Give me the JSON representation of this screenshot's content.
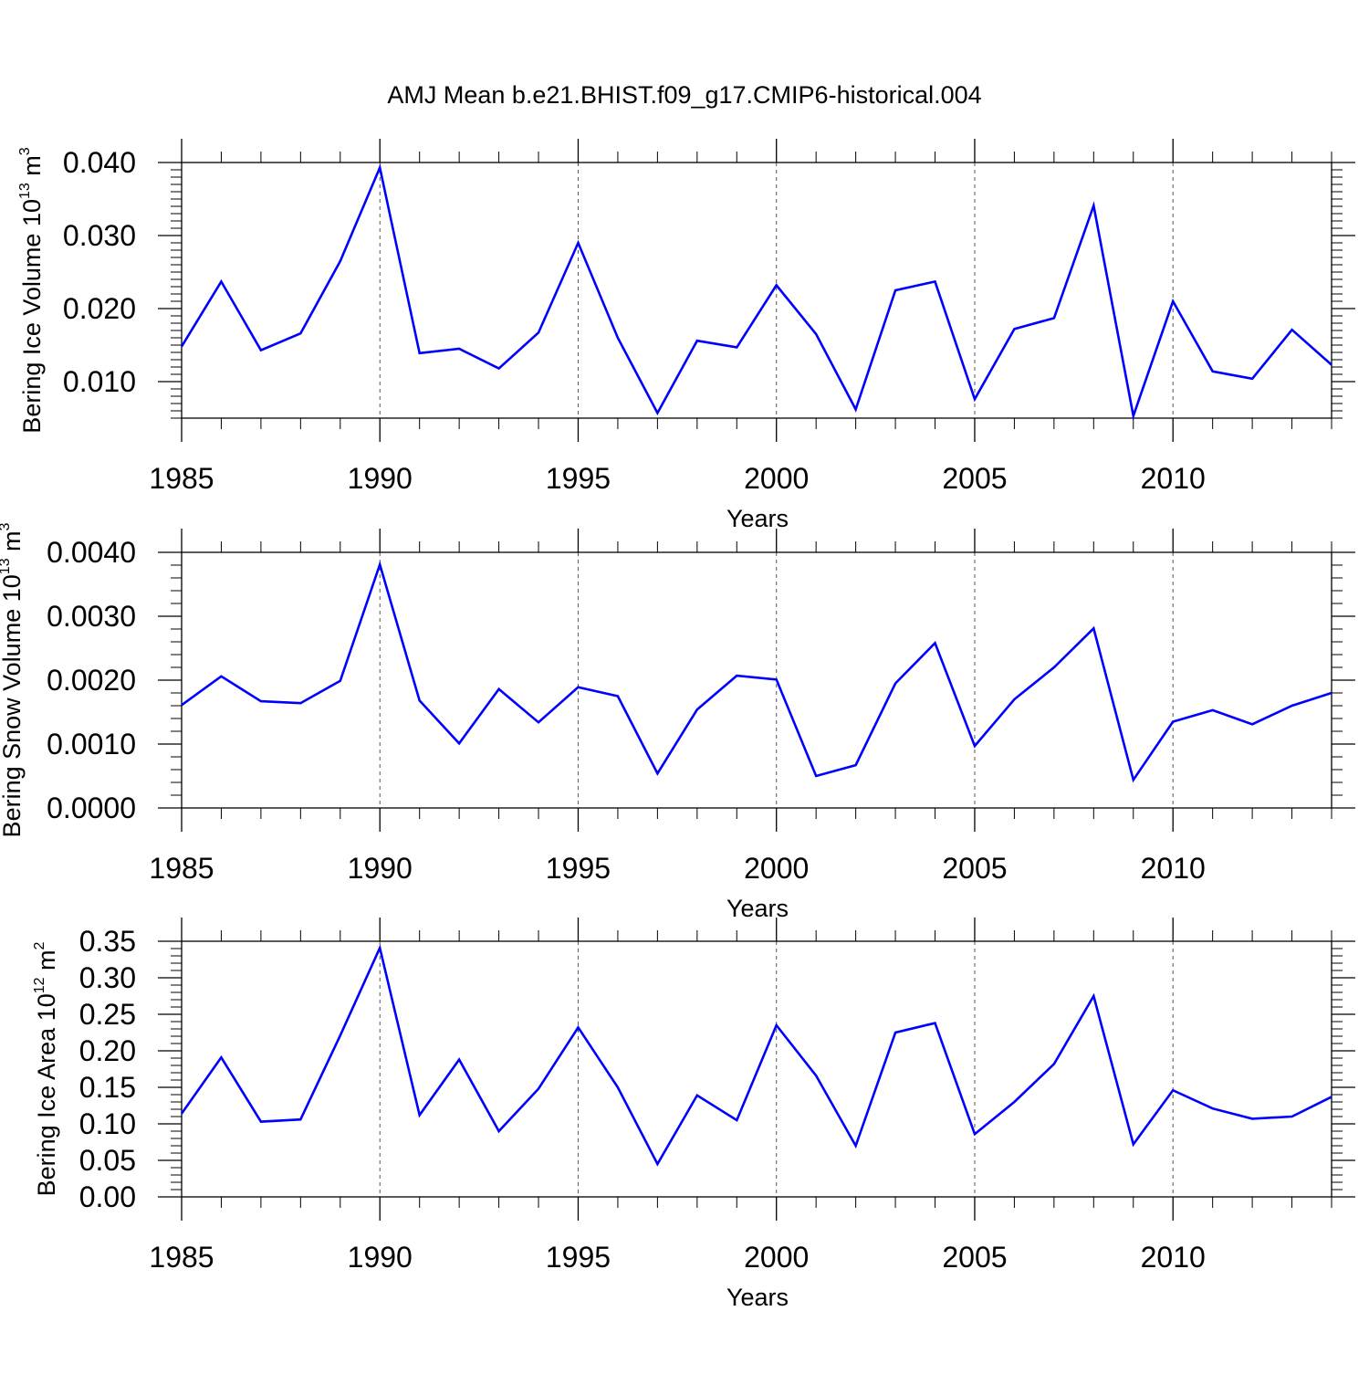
{
  "title": "AMJ Mean b.e21.BHIST.f09_g17.CMIP6-historical.004",
  "colors": {
    "line": "#0000ff",
    "axis": "#000000",
    "grid": "#555555"
  },
  "chart_data": [
    {
      "type": "line",
      "xlabel": "Years",
      "ylabel": {
        "prefix": "Bering Ice Volume 10",
        "exp": "13",
        "mid": " m",
        "unit_exp": "3"
      },
      "xlim": [
        1985,
        2014
      ],
      "ylim": [
        0.005,
        0.04
      ],
      "x_ticks": [
        "1985",
        "1990",
        "1995",
        "2000",
        "2005",
        "2010"
      ],
      "y_ticks": [
        "0.010",
        "0.020",
        "0.030",
        "0.040"
      ],
      "grid": "vertical dashed at major x ticks",
      "series": [
        {
          "x": [
            1985,
            1986,
            1987,
            1988,
            1989,
            1990,
            1991,
            1992,
            1993,
            1994,
            1995,
            1996,
            1997,
            1998,
            1999,
            2000,
            2001,
            2002,
            2003,
            2004,
            2005,
            2006,
            2007,
            2008,
            2009,
            2010,
            2011,
            2012,
            2013,
            2014
          ],
          "y": [
            0.0148,
            0.0237,
            0.0143,
            0.0166,
            0.0265,
            0.0393,
            0.0139,
            0.0145,
            0.0118,
            0.0167,
            0.029,
            0.016,
            0.0057,
            0.0156,
            0.0147,
            0.0232,
            0.0165,
            0.0062,
            0.0225,
            0.0237,
            0.0076,
            0.0172,
            0.0187,
            0.0341,
            0.0053,
            0.021,
            0.0114,
            0.0104,
            0.0171,
            0.0123
          ]
        }
      ]
    },
    {
      "type": "line",
      "xlabel": "Years",
      "ylabel": {
        "prefix": "Bering Snow Volume 10",
        "exp": "13",
        "mid": " m",
        "unit_exp": "3"
      },
      "xlim": [
        1985,
        2014
      ],
      "ylim": [
        0.0,
        0.004
      ],
      "x_ticks": [
        "1985",
        "1990",
        "1995",
        "2000",
        "2005",
        "2010"
      ],
      "y_ticks": [
        "0.0000",
        "0.0010",
        "0.0020",
        "0.0030",
        "0.0040"
      ],
      "grid": "vertical dashed at major x ticks",
      "series": [
        {
          "x": [
            1985,
            1986,
            1987,
            1988,
            1989,
            1990,
            1991,
            1992,
            1993,
            1994,
            1995,
            1996,
            1997,
            1998,
            1999,
            2000,
            2001,
            2002,
            2003,
            2004,
            2005,
            2006,
            2007,
            2008,
            2009,
            2010,
            2011,
            2012,
            2013,
            2014
          ],
          "y": [
            0.00161,
            0.00206,
            0.00167,
            0.00164,
            0.00199,
            0.00381,
            0.00168,
            0.00101,
            0.00186,
            0.00134,
            0.00189,
            0.00175,
            0.00054,
            0.00154,
            0.00207,
            0.00201,
            0.0005,
            0.00067,
            0.00195,
            0.00258,
            0.00097,
            0.0017,
            0.0022,
            0.00281,
            0.00044,
            0.00135,
            0.00153,
            0.00131,
            0.0016,
            0.0018
          ]
        }
      ]
    },
    {
      "type": "line",
      "xlabel": "Years",
      "ylabel": {
        "prefix": "Bering Ice Area 10",
        "exp": "12",
        "mid": " m",
        "unit_exp": "2"
      },
      "xlim": [
        1985,
        2014
      ],
      "ylim": [
        0.0,
        0.35
      ],
      "x_ticks": [
        "1985",
        "1990",
        "1995",
        "2000",
        "2005",
        "2010"
      ],
      "y_ticks": [
        "0.00",
        "0.05",
        "0.10",
        "0.15",
        "0.20",
        "0.25",
        "0.30",
        "0.35"
      ],
      "grid": "vertical dashed at major x ticks",
      "series": [
        {
          "x": [
            1985,
            1986,
            1987,
            1988,
            1989,
            1990,
            1991,
            1992,
            1993,
            1994,
            1995,
            1996,
            1997,
            1998,
            1999,
            2000,
            2001,
            2002,
            2003,
            2004,
            2005,
            2006,
            2007,
            2008,
            2009,
            2010,
            2011,
            2012,
            2013,
            2014
          ],
          "y": [
            0.114,
            0.191,
            0.103,
            0.106,
            0.221,
            0.341,
            0.112,
            0.188,
            0.09,
            0.148,
            0.232,
            0.15,
            0.045,
            0.139,
            0.105,
            0.235,
            0.166,
            0.07,
            0.225,
            0.238,
            0.086,
            0.13,
            0.182,
            0.275,
            0.072,
            0.146,
            0.121,
            0.107,
            0.11,
            0.137
          ]
        }
      ]
    }
  ]
}
